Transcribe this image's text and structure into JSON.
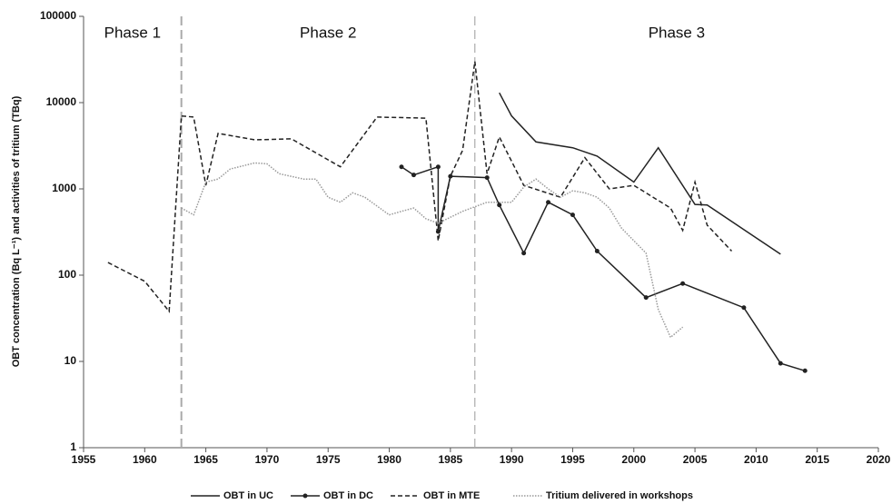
{
  "chart_data": {
    "type": "line",
    "y_label": "OBT concentration (Bq L⁻¹) and activities of tritium (TBq)",
    "log_y": true,
    "xlim": [
      1955,
      2020
    ],
    "xticks": [
      1955,
      1960,
      1965,
      1970,
      1975,
      1980,
      1985,
      1990,
      1995,
      2000,
      2005,
      2010,
      2015,
      2020
    ],
    "ylim": [
      1,
      100000
    ],
    "yticks": [
      1,
      10,
      100,
      1000,
      10000,
      100000
    ],
    "phase_boundaries": [
      1963,
      1987
    ],
    "phases": [
      "Phase 1",
      "Phase 2",
      "Phase 3"
    ],
    "legend": "bottom",
    "series": [
      {
        "name": "OBT in UC",
        "color": "#222222",
        "style": "solid",
        "markers": false,
        "x": [
          1989,
          1990,
          1992,
          1995,
          1997,
          2000,
          2002,
          2005,
          2006,
          2012
        ],
        "values": [
          13000,
          7000,
          3500,
          3000,
          2400,
          1200,
          3000,
          660,
          650,
          175
        ]
      },
      {
        "name": "OBT in DC",
        "color": "#222222",
        "style": "solid",
        "markers": true,
        "x": [
          1981,
          1982,
          1984,
          1984,
          1985,
          1988,
          1989,
          1991,
          1993,
          1995,
          1997,
          2001,
          2004,
          2009,
          2012,
          2014
        ],
        "values": [
          1800,
          1450,
          1800,
          320,
          1400,
          1350,
          650,
          180,
          700,
          500,
          190,
          55,
          80,
          42,
          9.5,
          7.8
        ]
      },
      {
        "name": "OBT in MTE",
        "color": "#222222",
        "style": "dashed",
        "markers": false,
        "x": [
          1957,
          1960,
          1962,
          1963,
          1964,
          1965,
          1966,
          1969,
          1972,
          1976,
          1979,
          1983,
          1984,
          1985,
          1986,
          1987,
          1988,
          1989,
          1991,
          1994,
          1996,
          1998,
          2000,
          2003,
          2004,
          2005,
          2006,
          2008
        ],
        "values": [
          140,
          85,
          38,
          7000,
          6800,
          1100,
          4400,
          3700,
          3800,
          1800,
          6800,
          6600,
          250,
          1400,
          2800,
          30000,
          1500,
          4000,
          1100,
          800,
          2300,
          1000,
          1100,
          600,
          330,
          1200,
          380,
          190
        ]
      },
      {
        "name": "Tritium delivered in workshops",
        "color": "#999999",
        "style": "dotted",
        "markers": false,
        "x": [
          1963,
          1964,
          1965,
          1966,
          1967,
          1969,
          1970,
          1971,
          1973,
          1974,
          1975,
          1976,
          1977,
          1978,
          1980,
          1981,
          1982,
          1983,
          1984,
          1986,
          1988,
          1990,
          1991,
          1992,
          1993,
          1994,
          1995,
          1996,
          1997,
          1998,
          1999,
          2001,
          2002,
          2003,
          2004
        ],
        "values": [
          600,
          500,
          1200,
          1300,
          1700,
          2000,
          1950,
          1500,
          1300,
          1300,
          800,
          700,
          900,
          800,
          500,
          550,
          600,
          450,
          400,
          550,
          700,
          700,
          1050,
          1300,
          1000,
          800,
          950,
          900,
          800,
          600,
          350,
          180,
          40,
          19,
          25
        ]
      }
    ]
  }
}
